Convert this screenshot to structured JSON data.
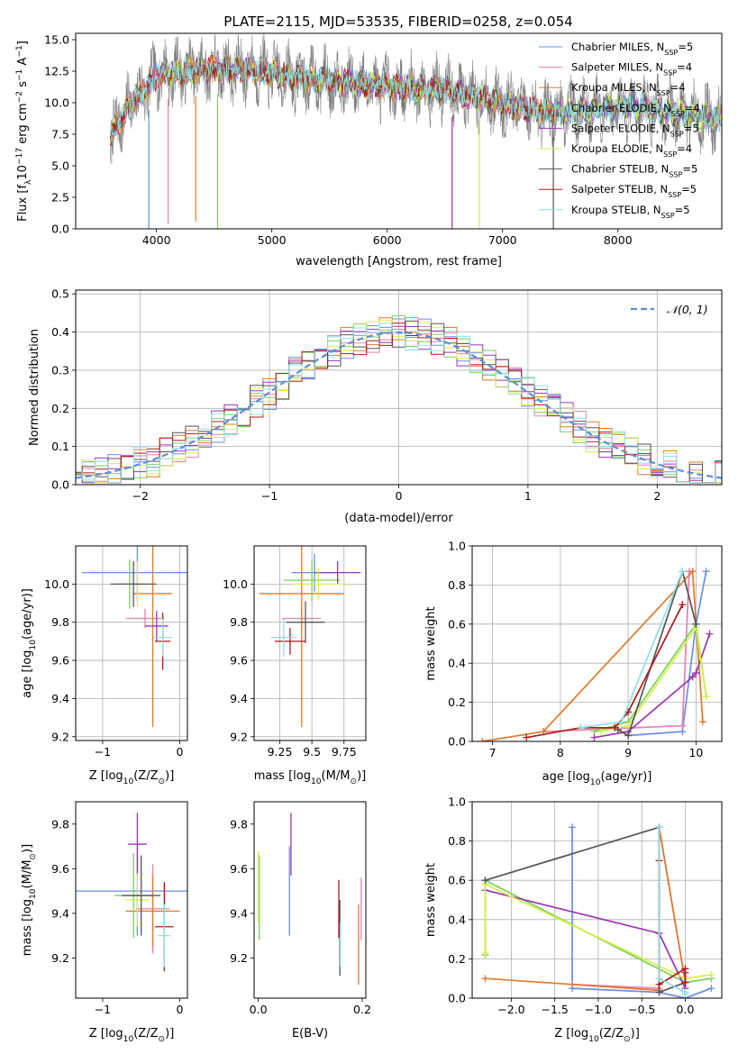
{
  "figure": {
    "title": "PLATE=2115, MJD=53535, FIBERID=0258, z=0.054"
  },
  "models": [
    {
      "label": "Chabrier MILES, N",
      "sub": "SSP",
      "suffix": "=5",
      "color": "#6a8ee8"
    },
    {
      "label": "Salpeter MILES, N",
      "sub": "SSP",
      "suffix": "=4",
      "color": "#e87fb0"
    },
    {
      "label": "Kroupa MILES, N",
      "sub": "SSP",
      "suffix": "=4",
      "color": "#e07a2a"
    },
    {
      "label": "Chabrier ELODIE, N",
      "sub": "SSP",
      "suffix": "=4",
      "color": "#79d25a"
    },
    {
      "label": "Salpeter ELODIE, N",
      "sub": "SSP",
      "suffix": "=5",
      "color": "#9a35b5"
    },
    {
      "label": "Kroupa ELODIE, N",
      "sub": "SSP",
      "suffix": "=4",
      "color": "#d8ee4a"
    },
    {
      "label": "Chabrier STELIB, N",
      "sub": "SSP",
      "suffix": "=5",
      "color": "#555555"
    },
    {
      "label": "Salpeter STELIB, N",
      "sub": "SSP",
      "suffix": "=5",
      "color": "#b01818"
    },
    {
      "label": "Kroupa STELIB, N",
      "sub": "SSP",
      "suffix": "=5",
      "color": "#8fe0e6"
    }
  ],
  "chart_data": [
    {
      "id": "spectrum",
      "type": "line",
      "xlabel": "wavelength [Angstrom, rest frame]",
      "ylabel": "Flux [f",
      "ylabel_sub": "λ",
      "ylabel_tail": "10",
      "ylabel_sup": "−17",
      "ylabel_end": " erg cm",
      "xlim": [
        3300,
        8900
      ],
      "ylim": [
        0,
        15.5
      ],
      "xticks": [
        4000,
        5000,
        6000,
        7000,
        8000
      ],
      "yticks": [
        0.0,
        2.5,
        5.0,
        7.5,
        10.0,
        12.5,
        15.0
      ],
      "observed_color": "#808080",
      "continuum": [
        [
          3600,
          7.3
        ],
        [
          3700,
          8.8
        ],
        [
          3800,
          10.2
        ],
        [
          3900,
          11.0
        ],
        [
          4000,
          12.2
        ],
        [
          4200,
          12.4
        ],
        [
          4500,
          12.7
        ],
        [
          4900,
          12.5
        ],
        [
          5200,
          12.0
        ],
        [
          5500,
          11.7
        ],
        [
          5800,
          11.5
        ],
        [
          6100,
          11.2
        ],
        [
          6500,
          11.0
        ],
        [
          6800,
          10.4
        ],
        [
          7200,
          9.5
        ],
        [
          7500,
          9.2
        ],
        [
          7800,
          9.5
        ],
        [
          8100,
          9.8
        ],
        [
          8500,
          9.2
        ],
        [
          8900,
          8.6
        ]
      ],
      "absorption_lines": [
        [
          3934,
          0.0
        ],
        [
          4101,
          0.4
        ],
        [
          4340,
          0.6
        ],
        [
          4530,
          0.0
        ],
        [
          6563,
          0.0
        ],
        [
          6800,
          0.0
        ],
        [
          7440,
          0.0
        ]
      ]
    },
    {
      "id": "residuals",
      "type": "histogram",
      "xlabel": "(data-model)/error",
      "ylabel": "Normed distribution",
      "xlim": [
        -2.5,
        2.5
      ],
      "ylim": [
        0,
        0.51
      ],
      "xticks": [
        -2,
        -1,
        0,
        1,
        2
      ],
      "yticks": [
        0.0,
        0.1,
        0.2,
        0.3,
        0.4,
        0.5
      ],
      "bin_width": 0.1,
      "reference_label": "𝒩(0, 1)",
      "reference_color": "#5b8fd6"
    },
    {
      "id": "age_vs_Z",
      "type": "scatter",
      "xlabel": "Z [log",
      "xlabel_sub": "10",
      "xlabel_tail": "(Z/Z",
      "xlabel_sub2": "⊙",
      "xlabel_end": ")]",
      "ylabel": "age  [log",
      "ylabel_sub": "10",
      "ylabel_end": "(age/yr)]",
      "xlim": [
        -1.35,
        0.1
      ],
      "ylim": [
        9.18,
        10.2
      ],
      "xticks": [
        -1,
        0
      ],
      "yticks": [
        9.2,
        9.4,
        9.6,
        9.8,
        10.0
      ],
      "points": [
        {
          "x": -0.55,
          "xerr": 0.72,
          "y": 10.06,
          "yerr": 0.15
        },
        {
          "x": -0.45,
          "xerr": 0.25,
          "y": 9.82,
          "yerr": 0.05
        },
        {
          "x": -0.35,
          "xerr": 0.25,
          "y": 9.95,
          "yerr": 0.7
        },
        {
          "x": -0.65,
          "xerr": 0.18,
          "y": 10.0,
          "yerr": 0.13
        },
        {
          "x": -0.3,
          "xerr": 0.15,
          "y": 9.78,
          "yerr": 0.08
        },
        {
          "x": -0.55,
          "xerr": 0.12,
          "y": 10.0,
          "yerr": 0.12
        },
        {
          "x": -0.6,
          "xerr": 0.3,
          "y": 10.0,
          "yerr": 0.12
        },
        {
          "x": -0.22,
          "xerr": 0.1,
          "y": 9.7,
          "yerr": 0.15
        },
        {
          "x": -0.22,
          "xerr": 0.12,
          "y": 9.72,
          "yerr": 0.1
        }
      ]
    },
    {
      "id": "age_vs_mass",
      "type": "scatter",
      "xlabel": "mass [log",
      "xlabel_sub": "10",
      "xlabel_tail": "(M/M",
      "xlabel_sub2": "⊙",
      "xlabel_end": ")]",
      "xlim": [
        9.05,
        9.92
      ],
      "ylim": [
        9.18,
        10.2
      ],
      "xticks": [
        9.25,
        9.5,
        9.75
      ],
      "yticks": [
        9.2,
        9.4,
        9.6,
        9.8,
        10.0
      ],
      "points": [
        {
          "x": 9.52,
          "xerr": 0.18,
          "y": 10.06,
          "yerr": 0.1
        },
        {
          "x": 9.42,
          "xerr": 0.15,
          "y": 9.82,
          "yerr": 0.05
        },
        {
          "x": 9.42,
          "xerr": 0.33,
          "y": 9.95,
          "yerr": 0.7
        },
        {
          "x": 9.5,
          "xerr": 0.22,
          "y": 10.02,
          "yerr": 0.11
        },
        {
          "x": 9.7,
          "xerr": 0.18,
          "y": 10.06,
          "yerr": 0.06
        },
        {
          "x": 9.55,
          "xerr": 0.2,
          "y": 10.0,
          "yerr": 0.08
        },
        {
          "x": 9.45,
          "xerr": 0.15,
          "y": 9.8,
          "yerr": 0.11
        },
        {
          "x": 9.33,
          "xerr": 0.12,
          "y": 9.7,
          "yerr": 0.07
        },
        {
          "x": 9.28,
          "xerr": 0.1,
          "y": 9.72,
          "yerr": 0.1
        }
      ]
    },
    {
      "id": "weight_vs_age",
      "type": "line",
      "xlabel": "age  [log",
      "xlabel_sub": "10",
      "xlabel_end": "(age/yr)]",
      "ylabel": "mass weight",
      "xlim": [
        6.7,
        10.38
      ],
      "ylim": [
        0,
        1.0
      ],
      "xticks": [
        7,
        8,
        9,
        10
      ],
      "yticks": [
        0.0,
        0.2,
        0.4,
        0.6,
        0.8,
        1.0
      ],
      "series": [
        {
          "x": [
            9.0,
            9.8,
            10.0,
            10.15
          ],
          "y": [
            0.03,
            0.05,
            0.6,
            0.87
          ]
        },
        {
          "x": [
            7.75,
            9.8,
            9.9
          ],
          "y": [
            0.05,
            0.08,
            0.87
          ]
        },
        {
          "x": [
            6.85,
            7.75,
            9.95,
            10.1
          ],
          "y": [
            0.0,
            0.05,
            0.87,
            0.1
          ]
        },
        {
          "x": [
            8.5,
            9.0,
            10.0,
            10.15
          ],
          "y": [
            0.05,
            0.1,
            0.6,
            0.23
          ]
        },
        {
          "x": [
            8.5,
            9.0,
            9.95,
            10.0,
            10.2
          ],
          "y": [
            0.02,
            0.05,
            0.33,
            0.35,
            0.55
          ]
        },
        {
          "x": [
            8.6,
            9.0,
            10.0,
            10.15
          ],
          "y": [
            0.05,
            0.08,
            0.58,
            0.23
          ]
        },
        {
          "x": [
            8.85,
            9.0,
            9.8,
            10.0
          ],
          "y": [
            0.06,
            0.03,
            0.87,
            0.6
          ]
        },
        {
          "x": [
            7.5,
            8.3,
            8.8,
            9.0,
            9.8
          ],
          "y": [
            0.02,
            0.07,
            0.07,
            0.15,
            0.7
          ]
        },
        {
          "x": [
            8.3,
            8.9,
            9.8
          ],
          "y": [
            0.07,
            0.1,
            0.87
          ]
        }
      ]
    },
    {
      "id": "mass_vs_Z",
      "type": "scatter",
      "xlabel": "Z [log",
      "xlabel_sub": "10",
      "xlabel_tail": "(Z/Z",
      "xlabel_sub2": "⊙",
      "xlabel_end": ")]",
      "ylabel": "mass [log",
      "ylabel_sub": "10",
      "ylabel_end": "(M/M",
      "ylabel_sub2": "⊙",
      "ylabel_end2": ")]",
      "xlim": [
        -1.35,
        0.1
      ],
      "ylim": [
        9.02,
        9.9
      ],
      "xticks": [
        -1,
        0
      ],
      "yticks": [
        9.2,
        9.4,
        9.6,
        9.8
      ],
      "points": [
        {
          "x": -0.55,
          "xerr": 0.8,
          "y": 9.5,
          "yerr": 0.2
        },
        {
          "x": -0.35,
          "xerr": 0.22,
          "y": 9.42,
          "yerr": 0.2
        },
        {
          "x": -0.35,
          "xerr": 0.35,
          "y": 9.41,
          "yerr": 0.16
        },
        {
          "x": -0.6,
          "xerr": 0.25,
          "y": 9.48,
          "yerr": 0.19
        },
        {
          "x": -0.55,
          "xerr": 0.12,
          "y": 9.71,
          "yerr": 0.14
        },
        {
          "x": -0.55,
          "xerr": 0.15,
          "y": 9.46,
          "yerr": 0.12
        },
        {
          "x": -0.5,
          "xerr": 0.25,
          "y": 9.48,
          "yerr": 0.18
        },
        {
          "x": -0.2,
          "xerr": 0.12,
          "y": 9.34,
          "yerr": 0.2
        },
        {
          "x": -0.2,
          "xerr": 0.08,
          "y": 9.3,
          "yerr": 0.14
        }
      ]
    },
    {
      "id": "mass_vs_ebv",
      "type": "scatter",
      "xlabel": "E(B-V)",
      "xlim": [
        -0.008,
        0.207
      ],
      "ylim": [
        9.02,
        9.9
      ],
      "xticks": [
        0.0,
        0.2
      ],
      "yticks": [
        9.2,
        9.4,
        9.6,
        9.8
      ],
      "points": [
        {
          "x": 0.06,
          "xerr": 0,
          "y": 9.5,
          "yerr": 0.2
        },
        {
          "x": 0.198,
          "xerr": 0,
          "y": 9.42,
          "yerr": 0.14
        },
        {
          "x": 0.193,
          "xerr": 0,
          "y": 9.26,
          "yerr": 0.18
        },
        {
          "x": 0.002,
          "xerr": 0,
          "y": 9.47,
          "yerr": 0.19
        },
        {
          "x": 0.063,
          "xerr": 0,
          "y": 9.71,
          "yerr": 0.14
        },
        {
          "x": 0.0,
          "xerr": 0,
          "y": 9.52,
          "yerr": 0.16
        },
        {
          "x": 0.157,
          "xerr": 0,
          "y": 9.29,
          "yerr": 0.17
        },
        {
          "x": 0.155,
          "xerr": 0,
          "y": 9.42,
          "yerr": 0.13
        },
        {
          "x": 0.158,
          "xerr": 0,
          "y": 9.26,
          "yerr": 0.1
        }
      ]
    },
    {
      "id": "weight_vs_Z",
      "type": "line",
      "xlabel": "Z [log",
      "xlabel_sub": "10",
      "xlabel_tail": "(Z/Z",
      "xlabel_sub2": "⊙",
      "xlabel_end": ")]",
      "ylabel": "mass weight",
      "xlim": [
        -2.45,
        0.42
      ],
      "ylim": [
        0,
        1.0
      ],
      "xticks": [
        -2.0,
        -1.5,
        -1.0,
        -0.5,
        0.0
      ],
      "yticks": [
        0.0,
        0.2,
        0.4,
        0.6,
        0.8,
        1.0
      ],
      "series": [
        {
          "x": [
            -1.3,
            -1.3,
            -0.3,
            0.0,
            0.3
          ],
          "y": [
            0.87,
            0.05,
            0.03,
            0.0,
            0.05
          ]
        },
        {
          "x": [
            -1.3,
            -0.3,
            -0.3,
            0.0
          ],
          "y": [
            0.07,
            0.05,
            0.87,
            0.08
          ]
        },
        {
          "x": [
            -2.3,
            -0.3,
            -0.3,
            0.0
          ],
          "y": [
            0.1,
            0.04,
            0.87,
            0.08
          ]
        },
        {
          "x": [
            -2.3,
            -2.3,
            0.0,
            0.3
          ],
          "y": [
            0.22,
            0.6,
            0.08,
            0.1
          ]
        },
        {
          "x": [
            -2.3,
            -0.3,
            0.0,
            0.0
          ],
          "y": [
            0.55,
            0.33,
            0.05,
            0.13
          ]
        },
        {
          "x": [
            -2.3,
            -2.3,
            0.0,
            0.3
          ],
          "y": [
            0.23,
            0.58,
            0.1,
            0.12
          ]
        },
        {
          "x": [
            -2.3,
            -0.3,
            -0.3,
            0.0
          ],
          "y": [
            0.6,
            0.87,
            0.03,
            0.08
          ]
        },
        {
          "x": [
            -0.3,
            -0.3,
            0.0,
            0.0
          ],
          "y": [
            0.7,
            0.07,
            0.15,
            0.08
          ]
        },
        {
          "x": [
            -0.3,
            -0.3,
            0.0,
            0.0
          ],
          "y": [
            0.87,
            0.1,
            0.03,
            0.02
          ]
        }
      ]
    }
  ]
}
